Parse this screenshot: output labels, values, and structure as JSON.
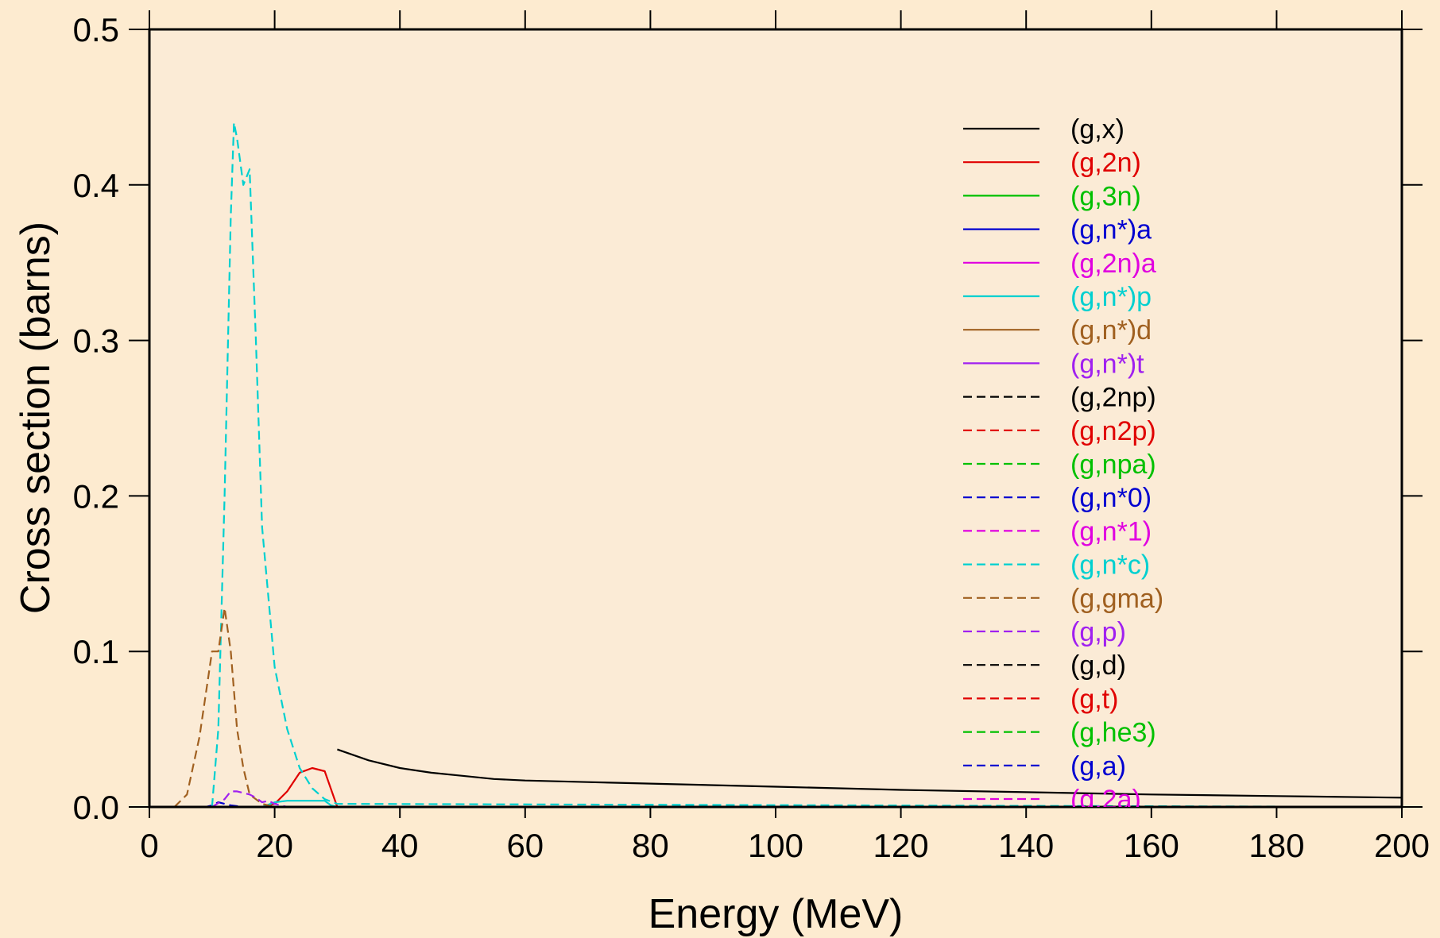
{
  "chart_data": {
    "type": "line",
    "xlabel": "Energy (MeV)",
    "ylabel": "Cross section (barns)",
    "xlim": [
      0,
      200
    ],
    "ylim": [
      0,
      0.5
    ],
    "xticks": [
      0,
      20,
      40,
      60,
      80,
      100,
      120,
      140,
      160,
      180,
      200
    ],
    "yticks": [
      0.0,
      0.1,
      0.2,
      0.3,
      0.4,
      0.5
    ],
    "xtick_labels": [
      "0",
      "20",
      "40",
      "60",
      "80",
      "100",
      "120",
      "140",
      "160",
      "180",
      "200"
    ],
    "ytick_labels": [
      "0.0",
      "0.1",
      "0.2",
      "0.3",
      "0.4",
      "0.5"
    ],
    "plot_background": "#fbebd6",
    "page_background": "#fdebd0",
    "grid": false,
    "legend_position": "upper-right",
    "series": [
      {
        "name": "(g,x)",
        "color": "#000000",
        "dash": "solid",
        "points": [
          [
            30,
            0.037
          ],
          [
            35,
            0.03
          ],
          [
            40,
            0.025
          ],
          [
            45,
            0.022
          ],
          [
            50,
            0.02
          ],
          [
            55,
            0.018
          ],
          [
            60,
            0.017
          ],
          [
            70,
            0.016
          ],
          [
            80,
            0.015
          ],
          [
            100,
            0.013
          ],
          [
            120,
            0.011
          ],
          [
            140,
            0.0095
          ],
          [
            160,
            0.008
          ],
          [
            180,
            0.007
          ],
          [
            200,
            0.006
          ]
        ]
      },
      {
        "name": "(g,2n)",
        "color": "#e00000",
        "dash": "solid",
        "points": [
          [
            18,
            0
          ],
          [
            20,
            0.002
          ],
          [
            22,
            0.01
          ],
          [
            24,
            0.022
          ],
          [
            26,
            0.025
          ],
          [
            28,
            0.023
          ],
          [
            30,
            0
          ]
        ]
      },
      {
        "name": "(g,3n)",
        "color": "#00c000",
        "dash": "solid",
        "points": [
          [
            30,
            0
          ],
          [
            200,
            0
          ]
        ]
      },
      {
        "name": "(g,n*)a",
        "color": "#0000d0",
        "dash": "solid",
        "points": [
          [
            0,
            0
          ],
          [
            200,
            0
          ]
        ]
      },
      {
        "name": "(g,2n)a",
        "color": "#e000e0",
        "dash": "solid",
        "points": [
          [
            0,
            0
          ],
          [
            200,
            0
          ]
        ]
      },
      {
        "name": "(g,n*)p",
        "color": "#00d0d0",
        "dash": "solid",
        "points": [
          [
            18,
            0
          ],
          [
            20,
            0.003
          ],
          [
            22,
            0.004
          ],
          [
            24,
            0.004
          ],
          [
            26,
            0.004
          ],
          [
            28,
            0.004
          ],
          [
            29,
            0.001
          ],
          [
            30,
            0
          ]
        ]
      },
      {
        "name": "(g,n*)d",
        "color": "#a06020",
        "dash": "solid",
        "points": [
          [
            0,
            0
          ],
          [
            200,
            0
          ]
        ]
      },
      {
        "name": "(g,n*)t",
        "color": "#a020f0",
        "dash": "solid",
        "points": [
          [
            0,
            0
          ],
          [
            200,
            0
          ]
        ]
      },
      {
        "name": "(g,2np)",
        "color": "#000000",
        "dash": "dashed",
        "points": [
          [
            0,
            0
          ],
          [
            200,
            0
          ]
        ]
      },
      {
        "name": "(g,n2p)",
        "color": "#e00000",
        "dash": "dashed",
        "points": [
          [
            0,
            0
          ],
          [
            200,
            0
          ]
        ]
      },
      {
        "name": "(g,npa)",
        "color": "#00c000",
        "dash": "dashed",
        "points": [
          [
            0,
            0
          ],
          [
            200,
            0
          ]
        ]
      },
      {
        "name": "(g,n*0)",
        "color": "#0000d0",
        "dash": "dashed",
        "points": [
          [
            0,
            0
          ],
          [
            9,
            0
          ],
          [
            10,
            0.001
          ],
          [
            11,
            0.003
          ],
          [
            12,
            0.002
          ],
          [
            13,
            0.001
          ],
          [
            15,
            0
          ],
          [
            200,
            0
          ]
        ]
      },
      {
        "name": "(g,n*1)",
        "color": "#e000e0",
        "dash": "dashed",
        "points": [
          [
            0,
            0
          ],
          [
            200,
            0
          ]
        ]
      },
      {
        "name": "(g,n*c)",
        "color": "#00d0d0",
        "dash": "dashed",
        "points": [
          [
            10,
            0
          ],
          [
            11,
            0.05
          ],
          [
            12,
            0.2
          ],
          [
            13,
            0.38
          ],
          [
            13.5,
            0.44
          ],
          [
            14,
            0.43
          ],
          [
            15,
            0.4
          ],
          [
            16,
            0.41
          ],
          [
            17,
            0.3
          ],
          [
            18,
            0.18
          ],
          [
            20,
            0.09
          ],
          [
            22,
            0.05
          ],
          [
            24,
            0.025
          ],
          [
            26,
            0.012
          ],
          [
            28,
            0.005
          ],
          [
            30,
            0.002
          ],
          [
            200,
            0
          ]
        ]
      },
      {
        "name": "(g,gma)",
        "color": "#a06020",
        "dash": "dashed",
        "points": [
          [
            4,
            0
          ],
          [
            6,
            0.008
          ],
          [
            8,
            0.045
          ],
          [
            10,
            0.1
          ],
          [
            11,
            0.1
          ],
          [
            12,
            0.128
          ],
          [
            13,
            0.1
          ],
          [
            14,
            0.05
          ],
          [
            15,
            0.025
          ],
          [
            16,
            0.008
          ],
          [
            18,
            0.002
          ],
          [
            20,
            0
          ],
          [
            200,
            0
          ]
        ]
      },
      {
        "name": "(g,p)",
        "color": "#a020f0",
        "dash": "dashed",
        "points": [
          [
            10,
            0
          ],
          [
            12,
            0.005
          ],
          [
            13,
            0.01
          ],
          [
            14,
            0.01
          ],
          [
            15,
            0.009
          ],
          [
            16,
            0.008
          ],
          [
            17,
            0.006
          ],
          [
            18,
            0.003
          ],
          [
            19,
            0.004
          ],
          [
            20,
            0.002
          ],
          [
            22,
            0
          ],
          [
            200,
            0
          ]
        ]
      },
      {
        "name": "(g,d)",
        "color": "#000000",
        "dash": "dashed",
        "points": [
          [
            0,
            0
          ],
          [
            200,
            0
          ]
        ]
      },
      {
        "name": "(g,t)",
        "color": "#e00000",
        "dash": "dashed",
        "points": [
          [
            0,
            0
          ],
          [
            200,
            0
          ]
        ]
      },
      {
        "name": "(g,he3)",
        "color": "#00c000",
        "dash": "dashed",
        "points": [
          [
            0,
            0
          ],
          [
            200,
            0
          ]
        ]
      },
      {
        "name": "(g,a)",
        "color": "#0000d0",
        "dash": "dashed",
        "points": [
          [
            0,
            0
          ],
          [
            200,
            0
          ]
        ]
      },
      {
        "name": "(g,2a)",
        "color": "#e000e0",
        "dash": "dashed",
        "points": [
          [
            0,
            0
          ],
          [
            200,
            0
          ]
        ]
      }
    ]
  }
}
